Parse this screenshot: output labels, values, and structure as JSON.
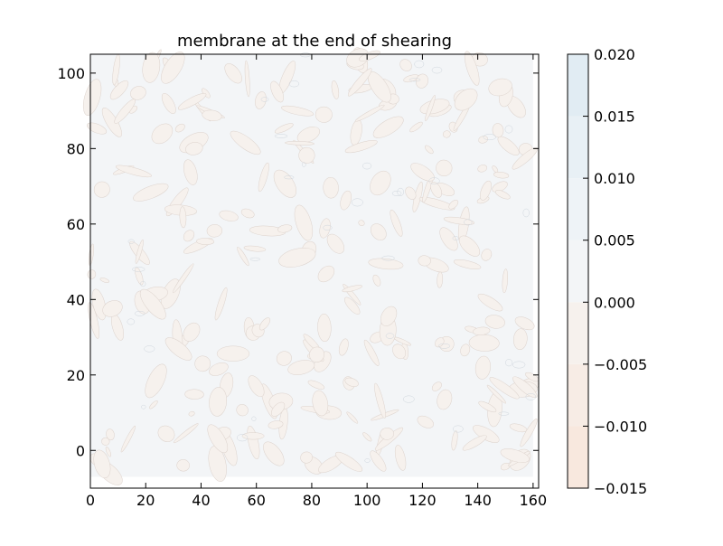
{
  "chart_data": {
    "type": "heatmap",
    "title": "membrane at the end of shearing",
    "xlabel": "",
    "ylabel": "",
    "xlim": [
      0,
      162
    ],
    "ylim": [
      -10,
      105
    ],
    "data_extent": {
      "x": [
        0,
        160
      ],
      "y": [
        -7,
        105
      ]
    },
    "x_ticks": [
      0,
      20,
      40,
      60,
      80,
      100,
      120,
      140,
      160
    ],
    "y_ticks": [
      0,
      20,
      40,
      60,
      80,
      100
    ],
    "colorbar": {
      "levels": [
        -0.015,
        -0.01,
        -0.005,
        0.0,
        0.005,
        0.01,
        0.015,
        0.02
      ],
      "tick_labels": [
        "−0.015",
        "−0.010",
        "−0.005",
        "0.000",
        "0.005",
        "0.010",
        "0.015",
        "0.020"
      ],
      "colors": [
        "#f8e8de",
        "#f7ece5",
        "#f6f1ed",
        "#f3f5f7",
        "#eef3f7",
        "#e8f0f5",
        "#e1ecf3"
      ]
    },
    "field_levels": [
      {
        "range": [
          -0.005,
          0.0
        ],
        "color": "#f6f1ed"
      },
      {
        "range": [
          0.0,
          0.005
        ],
        "color": "#f3f5f7"
      }
    ],
    "grid": false
  }
}
